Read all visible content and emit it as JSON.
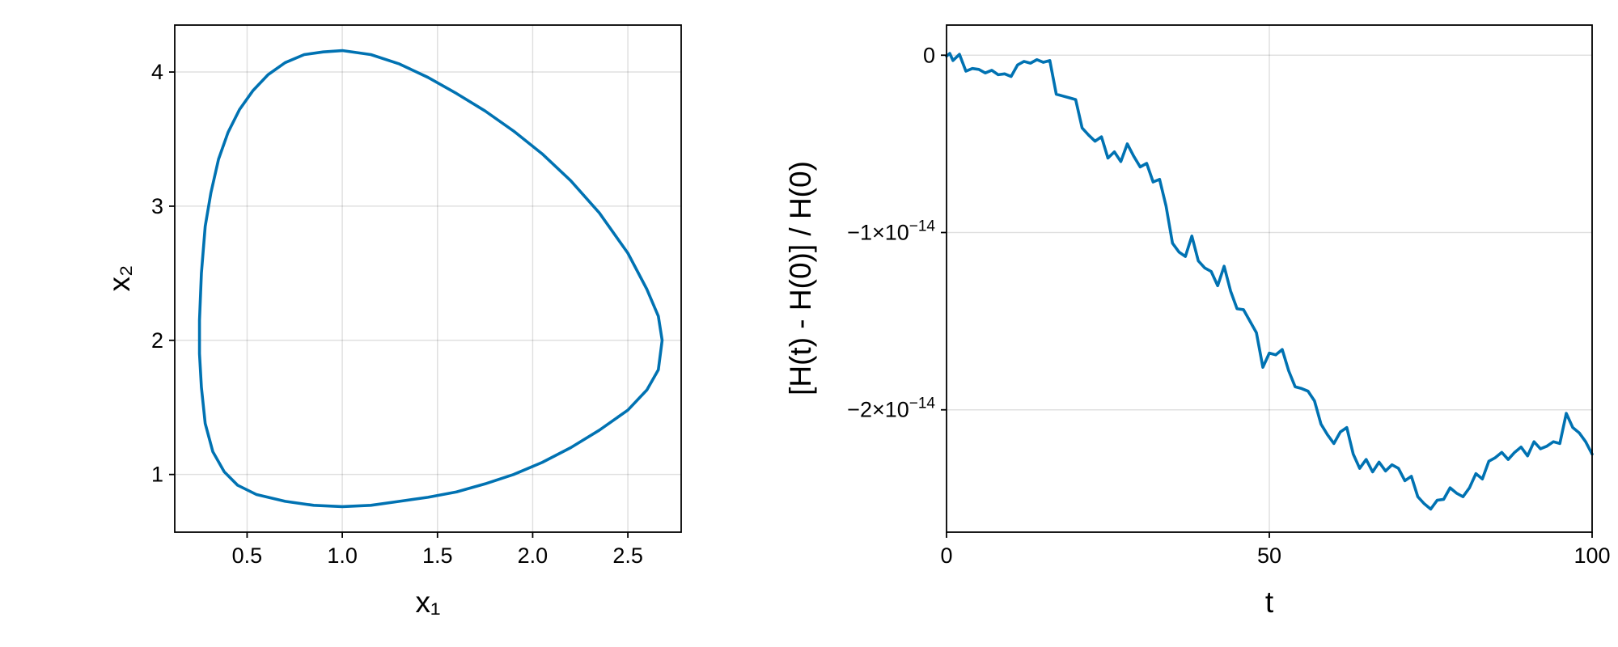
{
  "chart_data": [
    {
      "type": "line",
      "xlabel": "x₁",
      "ylabel": "x₂",
      "xlim": [
        0.12,
        2.78
      ],
      "ylim": [
        0.57,
        4.35
      ],
      "xticks": [
        0.5,
        1.0,
        1.5,
        2.0,
        2.5
      ],
      "xtick_labels": [
        "0.5",
        "1.0",
        "1.5",
        "2.0",
        "2.5"
      ],
      "yticks": [
        1,
        2,
        3,
        4
      ],
      "ytick_labels": [
        "1",
        "2",
        "3",
        "4"
      ],
      "grid": true,
      "color": "#0072b2",
      "series": [
        {
          "x": [
            1.0,
            1.15,
            1.3,
            1.45,
            1.6,
            1.75,
            1.9,
            2.05,
            2.2,
            2.35,
            2.5,
            2.6,
            2.66,
            2.68,
            2.66,
            2.6,
            2.5,
            2.35,
            2.2,
            2.05,
            1.9,
            1.75,
            1.6,
            1.45,
            1.3,
            1.15,
            1.0,
            0.85,
            0.7,
            0.55,
            0.45,
            0.38,
            0.32,
            0.28,
            0.26,
            0.25,
            0.25,
            0.26,
            0.28,
            0.31,
            0.35,
            0.4,
            0.46,
            0.53,
            0.61,
            0.7,
            0.8,
            0.9,
            1.0
          ],
          "y": [
            4.16,
            4.13,
            4.06,
            3.96,
            3.84,
            3.71,
            3.56,
            3.39,
            3.19,
            2.95,
            2.65,
            2.38,
            2.18,
            2.0,
            1.78,
            1.63,
            1.48,
            1.33,
            1.2,
            1.09,
            1.0,
            0.93,
            0.87,
            0.83,
            0.8,
            0.77,
            0.76,
            0.77,
            0.8,
            0.85,
            0.92,
            1.02,
            1.17,
            1.38,
            1.65,
            1.9,
            2.15,
            2.5,
            2.85,
            3.1,
            3.35,
            3.55,
            3.72,
            3.86,
            3.98,
            4.07,
            4.13,
            4.15,
            4.16
          ]
        }
      ]
    },
    {
      "type": "line",
      "xlabel": "t",
      "ylabel": "[H(t) - H(0)] / H(0)",
      "xlim": [
        0,
        100
      ],
      "ylim": [
        -2.69e-14,
        1.7e-15
      ],
      "xticks": [
        0,
        50,
        100
      ],
      "xtick_labels": [
        "0",
        "50",
        "100"
      ],
      "yticks": [
        0,
        -1e-14,
        -2e-14
      ],
      "ytick_labels": [
        {
          "mantissa": "0",
          "exponent": ""
        },
        {
          "mantissa": "−1×10",
          "exponent": "−14"
        },
        {
          "mantissa": "−2×10",
          "exponent": "−14"
        }
      ],
      "grid": true,
      "color": "#0072b2",
      "series": [
        {
          "x": [
            0,
            0.5,
            1,
            2,
            3,
            4,
            5,
            6,
            7,
            8,
            9,
            10,
            11,
            12,
            13,
            14,
            15,
            16,
            17,
            18,
            19,
            20,
            21,
            22,
            23,
            24,
            25,
            26,
            27,
            28,
            29,
            30,
            31,
            32,
            33,
            34,
            35,
            36,
            37,
            38,
            39,
            40,
            41,
            42,
            43,
            44,
            45,
            46,
            47,
            48,
            49,
            50,
            51,
            52,
            53,
            54,
            55,
            56,
            57,
            58,
            59,
            60,
            61,
            62,
            63,
            64,
            65,
            66,
            67,
            68,
            69,
            70,
            71,
            72,
            73,
            74,
            75,
            76,
            77,
            78,
            79,
            80,
            81,
            82,
            83,
            84,
            85,
            86,
            87,
            88,
            89,
            90,
            91,
            92,
            93,
            94,
            95,
            96,
            97,
            98,
            99,
            100
          ],
          "y": [
            -0.05,
            0.1,
            -0.3,
            0.05,
            -0.9,
            -0.75,
            -0.8,
            -1.0,
            -0.85,
            -1.1,
            -1.05,
            -1.2,
            -0.55,
            -0.35,
            -0.45,
            -0.25,
            -0.4,
            -0.3,
            -2.2,
            -2.3,
            -2.4,
            -2.5,
            -4.1,
            -4.5,
            -4.85,
            -4.6,
            -5.8,
            -5.45,
            -6.0,
            -5.0,
            -5.7,
            -6.3,
            -6.1,
            -7.15,
            -7.0,
            -8.5,
            -10.6,
            -11.1,
            -11.35,
            -10.2,
            -11.6,
            -12.0,
            -12.2,
            -13.0,
            -11.9,
            -13.3,
            -14.3,
            -14.35,
            -15.0,
            -15.65,
            -17.6,
            -16.8,
            -16.9,
            -16.6,
            -17.8,
            -18.7,
            -18.8,
            -18.95,
            -19.5,
            -20.8,
            -21.4,
            -21.9,
            -21.25,
            -21.0,
            -22.5,
            -23.3,
            -22.8,
            -23.5,
            -22.95,
            -23.45,
            -23.1,
            -23.3,
            -24.0,
            -23.75,
            -24.9,
            -25.3,
            -25.6,
            -25.1,
            -25.05,
            -24.4,
            -24.7,
            -24.9,
            -24.4,
            -23.6,
            -23.9,
            -22.9,
            -22.7,
            -22.4,
            -22.8,
            -22.4,
            -22.1,
            -22.6,
            -21.8,
            -22.2,
            -22.05,
            -21.8,
            -21.9,
            -20.2,
            -21.0,
            -21.3,
            -21.8,
            -22.5
          ],
          "y_scale_note": "×10^-15"
        }
      ]
    }
  ]
}
